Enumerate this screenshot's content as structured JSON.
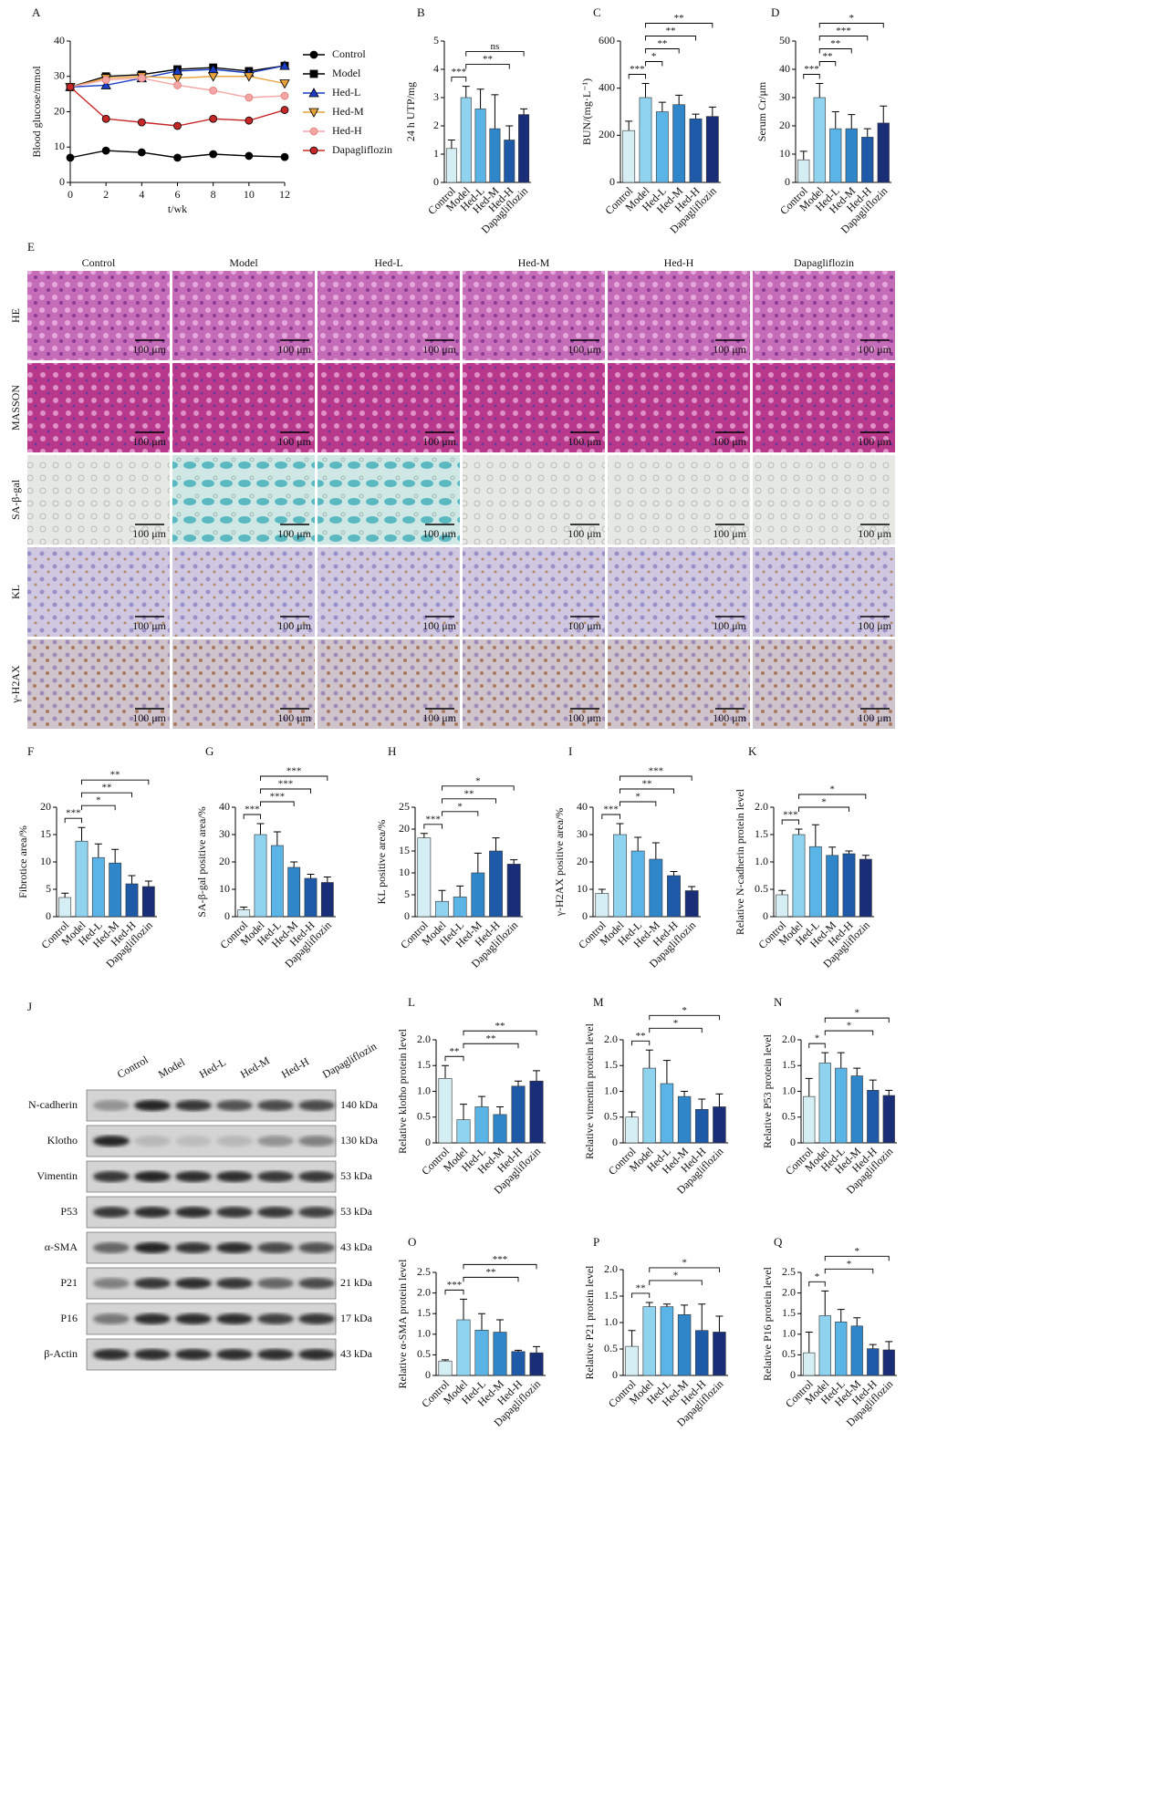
{
  "chart_data": [
    {
      "panel": "A",
      "type": "line",
      "y_label": "Blood glucose/mmol",
      "x_label": "t/wk",
      "x": [
        0,
        2,
        4,
        6,
        8,
        10,
        12
      ],
      "xlim": [
        0,
        12
      ],
      "xticks": [
        0,
        2,
        4,
        6,
        8,
        10,
        12
      ],
      "ylim": [
        0,
        40
      ],
      "yticks": [
        0,
        10,
        20,
        30,
        40
      ],
      "series": [
        {
          "name": "Control",
          "color": "#000000",
          "marker": "circle",
          "values": [
            7,
            9,
            8.5,
            7,
            8,
            7.5,
            7.2
          ]
        },
        {
          "name": "Model",
          "color": "#000000",
          "marker": "square",
          "values": [
            27,
            30,
            30.5,
            32,
            32.5,
            31.5,
            33
          ]
        },
        {
          "name": "Hed-L",
          "color": "#1a3fc4",
          "marker": "triangle-up",
          "values": [
            27,
            27.5,
            29.5,
            31.5,
            32,
            31,
            33
          ]
        },
        {
          "name": "Hed-M",
          "color": "#e8a33c",
          "marker": "triangle-down",
          "values": [
            27,
            29.5,
            30,
            29.5,
            30,
            30,
            28
          ]
        },
        {
          "name": "Hed-H",
          "color": "#f4a6a6",
          "marker": "circle",
          "values": [
            27,
            29,
            29.5,
            27.5,
            26,
            24,
            24.5
          ]
        },
        {
          "name": "Dapagliflozin",
          "color": "#c62828",
          "marker": "circle",
          "values": [
            27,
            18,
            17,
            16,
            18,
            17.5,
            20.5
          ]
        }
      ]
    },
    {
      "panel": "B",
      "type": "bar",
      "y_label": "24 h UTP/mg",
      "categories": [
        "Control",
        "Model",
        "Hed-L",
        "Hed-M",
        "Hed-H",
        "Dapagliflozin"
      ],
      "colors": [
        "#d4eef4",
        "#8fd3ef",
        "#5ab4e6",
        "#2f86c8",
        "#1f5aa8",
        "#1a2e78"
      ],
      "values": [
        1.2,
        3.0,
        2.6,
        1.9,
        1.5,
        2.4
      ],
      "errors": [
        0.3,
        0.4,
        0.7,
        1.2,
        0.5,
        0.2
      ],
      "ylim": [
        0,
        5
      ],
      "yticks": [
        0,
        1,
        2,
        3,
        4,
        5
      ],
      "significance": [
        {
          "groups": [
            0,
            1
          ],
          "label": "***"
        },
        {
          "groups": [
            1,
            4
          ],
          "label": "**"
        },
        {
          "groups": [
            1,
            5
          ],
          "label": "ns"
        }
      ]
    },
    {
      "panel": "C",
      "type": "bar",
      "y_label": "BUN/(mg·L⁻¹)",
      "categories": [
        "Control",
        "Model",
        "Hed-L",
        "Hed-M",
        "Hed-H",
        "Dapagliflozin"
      ],
      "colors": [
        "#d4eef4",
        "#8fd3ef",
        "#5ab4e6",
        "#2f86c8",
        "#1f5aa8",
        "#1a2e78"
      ],
      "values": [
        220,
        360,
        300,
        330,
        270,
        280
      ],
      "errors": [
        40,
        60,
        40,
        40,
        20,
        40
      ],
      "ylim": [
        0,
        600
      ],
      "yticks": [
        0,
        200,
        400,
        600
      ],
      "significance": [
        {
          "groups": [
            0,
            1
          ],
          "label": "***"
        },
        {
          "groups": [
            1,
            2
          ],
          "label": "*"
        },
        {
          "groups": [
            1,
            3
          ],
          "label": "**"
        },
        {
          "groups": [
            1,
            4
          ],
          "label": "**"
        },
        {
          "groups": [
            1,
            5
          ],
          "label": "**"
        }
      ]
    },
    {
      "panel": "D",
      "type": "bar",
      "y_label": "Serum Cr/μm",
      "categories": [
        "Control",
        "Model",
        "Hed-L",
        "Hed-M",
        "Hed-H",
        "Dapagliflozin"
      ],
      "colors": [
        "#d4eef4",
        "#8fd3ef",
        "#5ab4e6",
        "#2f86c8",
        "#1f5aa8",
        "#1a2e78"
      ],
      "values": [
        8,
        30,
        19,
        19,
        16,
        21
      ],
      "errors": [
        3,
        5,
        6,
        5,
        3,
        6
      ],
      "ylim": [
        0,
        50
      ],
      "yticks": [
        0,
        10,
        20,
        30,
        40,
        50
      ],
      "significance": [
        {
          "groups": [
            0,
            1
          ],
          "label": "***"
        },
        {
          "groups": [
            1,
            2
          ],
          "label": "**"
        },
        {
          "groups": [
            1,
            3
          ],
          "label": "**"
        },
        {
          "groups": [
            1,
            4
          ],
          "label": "***"
        },
        {
          "groups": [
            1,
            5
          ],
          "label": "*"
        }
      ]
    },
    {
      "panel": "F",
      "type": "bar",
      "y_label": "Fibrotice area/%",
      "categories": [
        "Control",
        "Model",
        "Hed-L",
        "Hed-M",
        "Hed-H",
        "Dapagliflozin"
      ],
      "colors": [
        "#d4eef4",
        "#8fd3ef",
        "#5ab4e6",
        "#2f86c8",
        "#1f5aa8",
        "#1a2e78"
      ],
      "values": [
        3.5,
        13.8,
        10.8,
        9.8,
        6,
        5.5
      ],
      "errors": [
        0.8,
        2.5,
        2.5,
        2.5,
        1.5,
        1
      ],
      "ylim": [
        0,
        20
      ],
      "yticks": [
        0,
        5,
        10,
        15,
        20
      ],
      "significance": [
        {
          "groups": [
            0,
            1
          ],
          "label": "***"
        },
        {
          "groups": [
            1,
            3
          ],
          "label": "*"
        },
        {
          "groups": [
            1,
            4
          ],
          "label": "**"
        },
        {
          "groups": [
            1,
            5
          ],
          "label": "**"
        }
      ]
    },
    {
      "panel": "G",
      "type": "bar",
      "y_label": "SA-β-gal positive area/%",
      "categories": [
        "Control",
        "Model",
        "Hed-L",
        "Hed-M",
        "Hed-H",
        "Dapagliflozin"
      ],
      "colors": [
        "#d4eef4",
        "#8fd3ef",
        "#5ab4e6",
        "#2f86c8",
        "#1f5aa8",
        "#1a2e78"
      ],
      "values": [
        2.5,
        30,
        26,
        18,
        14,
        12.5
      ],
      "errors": [
        1,
        4,
        5,
        2,
        1.5,
        2
      ],
      "ylim": [
        0,
        40
      ],
      "yticks": [
        0,
        10,
        20,
        30,
        40
      ],
      "significance": [
        {
          "groups": [
            0,
            1
          ],
          "label": "***"
        },
        {
          "groups": [
            1,
            3
          ],
          "label": "***"
        },
        {
          "groups": [
            1,
            4
          ],
          "label": "***"
        },
        {
          "groups": [
            1,
            5
          ],
          "label": "***"
        }
      ]
    },
    {
      "panel": "H",
      "type": "bar",
      "y_label": "KL positive area/%",
      "categories": [
        "Control",
        "Model",
        "Hed-L",
        "Hed-M",
        "Hed-H",
        "Dapagliflozin"
      ],
      "colors": [
        "#d4eef4",
        "#8fd3ef",
        "#5ab4e6",
        "#2f86c8",
        "#1f5aa8",
        "#1a2e78"
      ],
      "values": [
        18,
        3.5,
        4.5,
        10,
        15,
        12
      ],
      "errors": [
        1,
        2.5,
        2.5,
        4.5,
        3,
        1
      ],
      "ylim": [
        0,
        25
      ],
      "yticks": [
        0,
        5,
        10,
        15,
        20,
        25
      ],
      "significance": [
        {
          "groups": [
            0,
            1
          ],
          "label": "***"
        },
        {
          "groups": [
            1,
            3
          ],
          "label": "*"
        },
        {
          "groups": [
            1,
            4
          ],
          "label": "**"
        },
        {
          "groups": [
            1,
            5
          ],
          "label": "*"
        }
      ]
    },
    {
      "panel": "I",
      "type": "bar",
      "y_label": "γ-H2AX  positive area/%",
      "categories": [
        "Control",
        "Model",
        "Hed-L",
        "Hed-M",
        "Hed-H",
        "Dapagliflozin"
      ],
      "colors": [
        "#d4eef4",
        "#8fd3ef",
        "#5ab4e6",
        "#2f86c8",
        "#1f5aa8",
        "#1a2e78"
      ],
      "values": [
        8.5,
        30,
        24,
        21,
        15,
        9.5
      ],
      "errors": [
        1.5,
        4,
        5,
        6,
        1.5,
        1.5
      ],
      "ylim": [
        0,
        40
      ],
      "yticks": [
        0,
        10,
        20,
        30,
        40
      ],
      "significance": [
        {
          "groups": [
            0,
            1
          ],
          "label": "***"
        },
        {
          "groups": [
            1,
            3
          ],
          "label": "*"
        },
        {
          "groups": [
            1,
            4
          ],
          "label": "**"
        },
        {
          "groups": [
            1,
            5
          ],
          "label": "***"
        }
      ]
    },
    {
      "panel": "K",
      "type": "bar",
      "y_label": "Relative N-cadherin protein level",
      "categories": [
        "Control",
        "Model",
        "Hed-L",
        "Hed-M",
        "Hed-H",
        "Dapagliflozin"
      ],
      "colors": [
        "#d4eef4",
        "#8fd3ef",
        "#5ab4e6",
        "#2f86c8",
        "#1f5aa8",
        "#1a2e78"
      ],
      "values": [
        0.4,
        1.5,
        1.28,
        1.12,
        1.15,
        1.05
      ],
      "errors": [
        0.08,
        0.1,
        0.4,
        0.15,
        0.05,
        0.07
      ],
      "ylim": [
        0,
        2
      ],
      "yticks": [
        0,
        0.5,
        {
          "value": 1,
          "label": "1.0"
        },
        1.5,
        {
          "value": 2,
          "label": "2.0"
        }
      ],
      "significance": [
        {
          "groups": [
            0,
            1
          ],
          "label": "***"
        },
        {
          "groups": [
            1,
            4
          ],
          "label": "*"
        },
        {
          "groups": [
            1,
            5
          ],
          "label": "*"
        }
      ]
    },
    {
      "panel": "L",
      "type": "bar",
      "y_label": "Relative klotho protein level",
      "categories": [
        "Control",
        "Model",
        "Hed-L",
        "Hed-M",
        "Hed-H",
        "Dapagliflozin"
      ],
      "colors": [
        "#d4eef4",
        "#8fd3ef",
        "#5ab4e6",
        "#2f86c8",
        "#1f5aa8",
        "#1a2e78"
      ],
      "values": [
        1.25,
        0.45,
        0.7,
        0.55,
        1.1,
        1.2
      ],
      "errors": [
        0.25,
        0.3,
        0.2,
        0.15,
        0.1,
        0.2
      ],
      "ylim": [
        0,
        2
      ],
      "yticks": [
        0,
        0.5,
        {
          "value": 1,
          "label": "1.0"
        },
        1.5,
        {
          "value": 2,
          "label": "2.0"
        }
      ],
      "significance": [
        {
          "groups": [
            0,
            1
          ],
          "label": "**"
        },
        {
          "groups": [
            1,
            4
          ],
          "label": "**"
        },
        {
          "groups": [
            1,
            5
          ],
          "label": "**"
        }
      ]
    },
    {
      "panel": "M",
      "type": "bar",
      "y_label": "Relative vimentin protein level",
      "categories": [
        "Control",
        "Model",
        "Hed-L",
        "Hed-M",
        "Hed-H",
        "Dapagliflozin"
      ],
      "colors": [
        "#d4eef4",
        "#8fd3ef",
        "#5ab4e6",
        "#2f86c8",
        "#1f5aa8",
        "#1a2e78"
      ],
      "values": [
        0.5,
        1.45,
        1.15,
        0.9,
        0.65,
        0.7
      ],
      "errors": [
        0.1,
        0.35,
        0.45,
        0.1,
        0.2,
        0.25
      ],
      "ylim": [
        0,
        2
      ],
      "yticks": [
        0,
        0.5,
        {
          "value": 1,
          "label": "1.0"
        },
        1.5,
        {
          "value": 2,
          "label": "2.0"
        }
      ],
      "significance": [
        {
          "groups": [
            0,
            1
          ],
          "label": "**"
        },
        {
          "groups": [
            1,
            4
          ],
          "label": "*"
        },
        {
          "groups": [
            1,
            5
          ],
          "label": "*"
        }
      ]
    },
    {
      "panel": "N",
      "type": "bar",
      "y_label": "Relative P53 protein level",
      "categories": [
        "Control",
        "Model",
        "Hed-L",
        "Hed-M",
        "Hed-H",
        "Dapagliflozin"
      ],
      "colors": [
        "#d4eef4",
        "#8fd3ef",
        "#5ab4e6",
        "#2f86c8",
        "#1f5aa8",
        "#1a2e78"
      ],
      "values": [
        0.9,
        1.55,
        1.45,
        1.3,
        1.02,
        0.92
      ],
      "errors": [
        0.35,
        0.2,
        0.3,
        0.15,
        0.2,
        0.1
      ],
      "ylim": [
        0,
        2
      ],
      "yticks": [
        0,
        0.5,
        {
          "value": 1,
          "label": "1.0"
        },
        1.5,
        {
          "value": 2,
          "label": "2.0"
        }
      ],
      "significance": [
        {
          "groups": [
            0,
            1
          ],
          "label": "*"
        },
        {
          "groups": [
            1,
            4
          ],
          "label": "*"
        },
        {
          "groups": [
            1,
            5
          ],
          "label": "*"
        }
      ]
    },
    {
      "panel": "O",
      "type": "bar",
      "y_label": "Relative α-SMA protein level",
      "categories": [
        "Control",
        "Model",
        "Hed-L",
        "Hed-M",
        "Hed-H",
        "Dapagliflozin"
      ],
      "colors": [
        "#d4eef4",
        "#8fd3ef",
        "#5ab4e6",
        "#2f86c8",
        "#1f5aa8",
        "#1a2e78"
      ],
      "values": [
        0.35,
        1.35,
        1.1,
        1.05,
        0.58,
        0.55
      ],
      "errors": [
        0.03,
        0.5,
        0.4,
        0.3,
        0.03,
        0.15
      ],
      "ylim": [
        0,
        2.5
      ],
      "yticks": [
        0,
        0.5,
        {
          "value": 1,
          "label": "1.0"
        },
        1.5,
        {
          "value": 2,
          "label": "2.0"
        },
        2.5
      ],
      "significance": [
        {
          "groups": [
            0,
            1
          ],
          "label": "***"
        },
        {
          "groups": [
            1,
            4
          ],
          "label": "**"
        },
        {
          "groups": [
            1,
            5
          ],
          "label": "***"
        }
      ]
    },
    {
      "panel": "P",
      "type": "bar",
      "y_label": "Relative P21 protein level",
      "categories": [
        "Control",
        "Model",
        "Hed-L",
        "Hed-M",
        "Hed-H",
        "Dapagliflozin"
      ],
      "colors": [
        "#d4eef4",
        "#8fd3ef",
        "#5ab4e6",
        "#2f86c8",
        "#1f5aa8",
        "#1a2e78"
      ],
      "values": [
        0.55,
        1.3,
        1.3,
        1.15,
        0.85,
        0.82
      ],
      "errors": [
        0.3,
        0.08,
        0.05,
        0.18,
        0.5,
        0.3
      ],
      "ylim": [
        0,
        2
      ],
      "yticks": [
        0,
        0.5,
        {
          "value": 1,
          "label": "1.0"
        },
        1.5,
        {
          "value": 2,
          "label": "2.0"
        }
      ],
      "significance": [
        {
          "groups": [
            0,
            1
          ],
          "label": "**"
        },
        {
          "groups": [
            1,
            4
          ],
          "label": "*"
        },
        {
          "groups": [
            1,
            5
          ],
          "label": "*"
        }
      ]
    },
    {
      "panel": "Q",
      "type": "bar",
      "y_label": "Relative P16 protein level",
      "categories": [
        "Control",
        "Model",
        "Hed-L",
        "Hed-M",
        "Hed-H",
        "Dapagliflozin"
      ],
      "colors": [
        "#d4eef4",
        "#8fd3ef",
        "#5ab4e6",
        "#2f86c8",
        "#1f5aa8",
        "#1a2e78"
      ],
      "values": [
        0.55,
        1.45,
        1.3,
        1.2,
        0.65,
        0.62
      ],
      "errors": [
        0.5,
        0.6,
        0.3,
        0.2,
        0.1,
        0.2
      ],
      "ylim": [
        0,
        2.5
      ],
      "yticks": [
        0,
        0.5,
        {
          "value": 1,
          "label": "1.0"
        },
        1.5,
        {
          "value": 2,
          "label": "2.0"
        },
        2.5
      ],
      "significance": [
        {
          "groups": [
            0,
            1
          ],
          "label": "*"
        },
        {
          "groups": [
            1,
            4
          ],
          "label": "*"
        },
        {
          "groups": [
            1,
            5
          ],
          "label": "*"
        }
      ]
    }
  ],
  "histology": {
    "panel": "E",
    "columns": [
      "Control",
      "Model",
      "Hed-L",
      "Hed-M",
      "Hed-H",
      "Dapagliflozin"
    ],
    "rows": [
      "HE",
      "MASSON",
      "SA-β-gal",
      "KL",
      "γ-H2AX"
    ],
    "scale_bar": "100 μm"
  },
  "western_blot": {
    "panel": "J",
    "lanes": [
      "Control",
      "Model",
      "Hed-L",
      "Hed-M",
      "Hed-H",
      "Dapagliflozin"
    ],
    "bands": [
      {
        "protein": "N-cadherin",
        "size": "140 kDa"
      },
      {
        "protein": "Klotho",
        "size": "130 kDa"
      },
      {
        "protein": "Vimentin",
        "size": "53 kDa"
      },
      {
        "protein": "P53",
        "size": "53 kDa"
      },
      {
        "protein": "α-SMA",
        "size": "43 kDa"
      },
      {
        "protein": "P21",
        "size": "21 kDa"
      },
      {
        "protein": "P16",
        "size": "17 kDa"
      },
      {
        "protein": "β-Actin",
        "size": "43 kDa"
      }
    ]
  }
}
